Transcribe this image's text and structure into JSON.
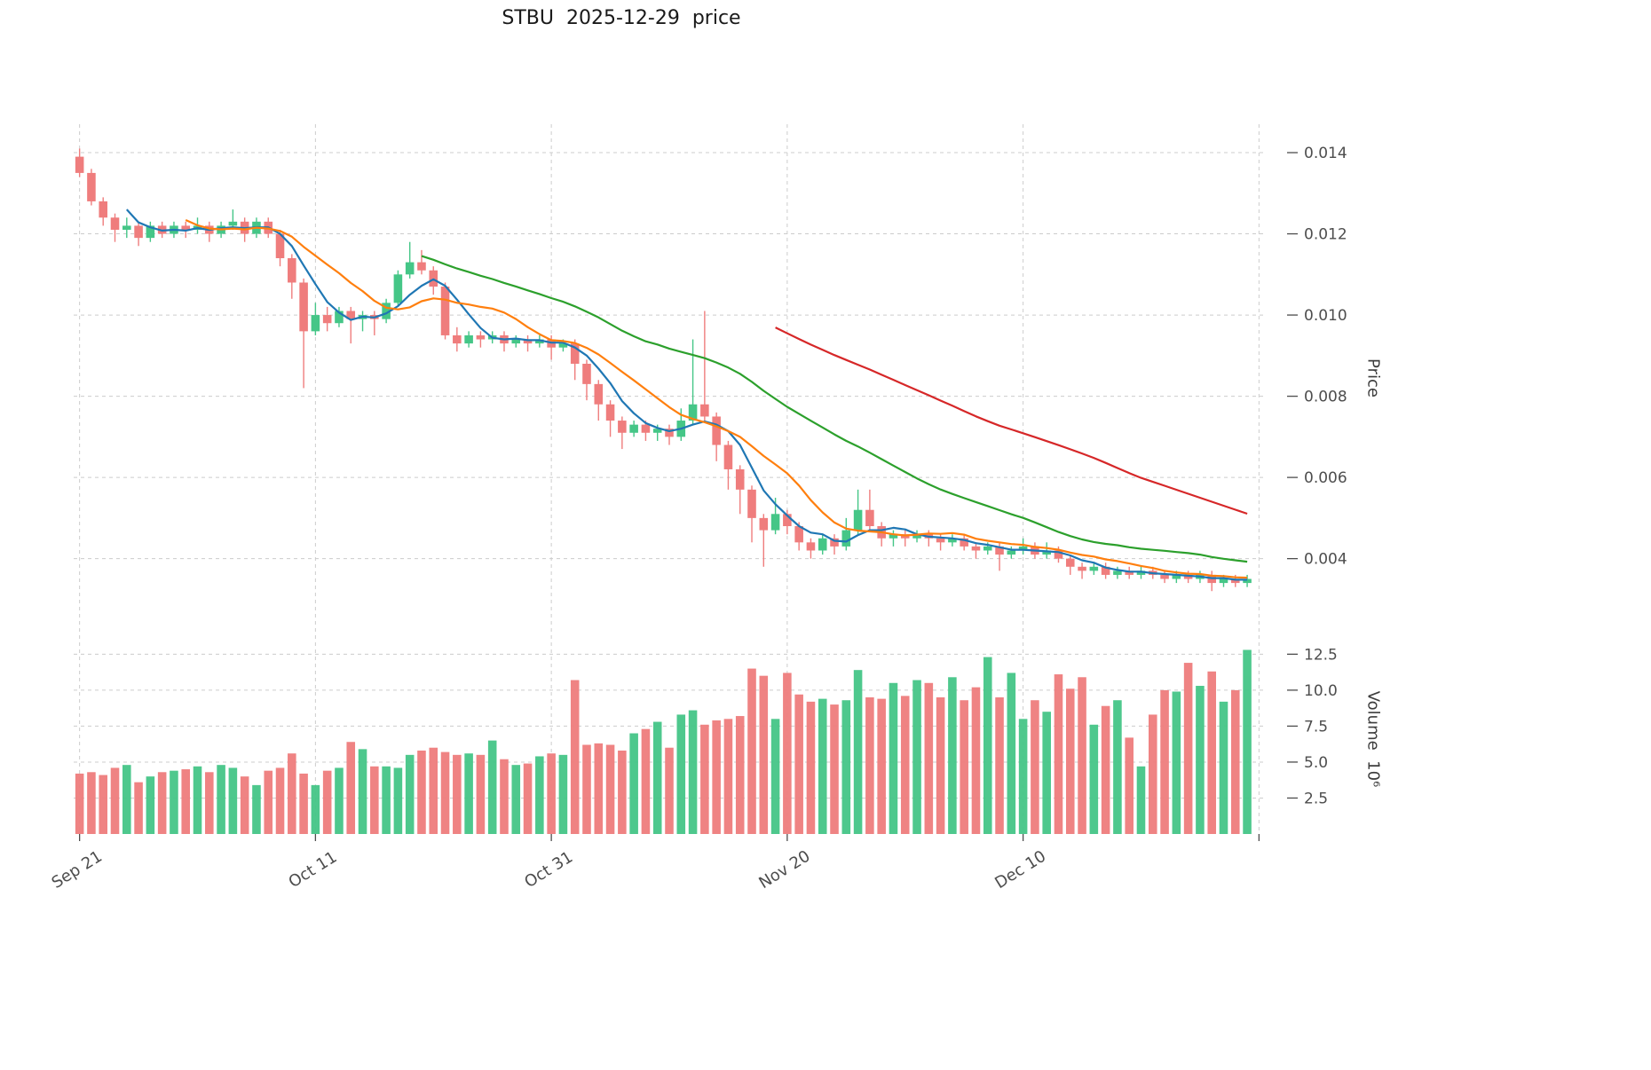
{
  "title": "STBU  2025-12-29  price",
  "axes": {
    "price_label": "Price",
    "volume_label": "Volume  10⁶"
  },
  "colors": {
    "up": "#45c687",
    "down": "#ef7d7d",
    "grid": "#cccccc",
    "tick_text": "#4d4d4d",
    "ma_short": "#1f77b4",
    "ma_mid": "#ff7f0e",
    "ma_long": "#2ca02c",
    "ma_longest": "#d62728"
  },
  "chart_data": {
    "type": "candlestick+volume",
    "start_date": "2025-09-21",
    "end_date": "2025-12-29",
    "x_tick_labels": [
      {
        "index": 0,
        "label": "Sep 21"
      },
      {
        "index": 20,
        "label": "Oct 11"
      },
      {
        "index": 40,
        "label": "Oct 31"
      },
      {
        "index": 60,
        "label": "Nov 20"
      },
      {
        "index": 80,
        "label": "Dec 10"
      },
      {
        "index": 100,
        "label": ""
      }
    ],
    "price_ticks": [
      {
        "value": 0.004,
        "label": "0.004"
      },
      {
        "value": 0.006,
        "label": "0.006"
      },
      {
        "value": 0.008,
        "label": "0.008"
      },
      {
        "value": 0.01,
        "label": "0.010"
      },
      {
        "value": 0.012,
        "label": "0.012"
      },
      {
        "value": 0.014,
        "label": "0.014"
      }
    ],
    "volume_ticks": [
      {
        "value": 2.5,
        "label": "2.5"
      },
      {
        "value": 5.0,
        "label": "5.0"
      },
      {
        "value": 7.5,
        "label": "7.5"
      },
      {
        "value": 10.0,
        "label": "10.0"
      },
      {
        "value": 12.5,
        "label": "12.5"
      }
    ],
    "price_axis_range": [
      0.0022,
      0.0147
    ],
    "volume_axis_range_millions": [
      0,
      13.2
    ],
    "moving_averages": [
      {
        "name": "MA5",
        "window": 5,
        "color": "#1f77b4"
      },
      {
        "name": "MA10",
        "window": 10,
        "color": "#ff7f0e"
      },
      {
        "name": "MA30",
        "window": 30,
        "color": "#2ca02c"
      },
      {
        "name": "MA60",
        "window": 60,
        "color": "#d62728"
      }
    ],
    "candles": {
      "columns": [
        "open",
        "high",
        "low",
        "close",
        "volume_millions"
      ],
      "rows": [
        [
          0.0139,
          0.0141,
          0.0134,
          0.0135,
          4.2
        ],
        [
          0.0135,
          0.0136,
          0.0127,
          0.0128,
          4.3
        ],
        [
          0.0128,
          0.0129,
          0.0122,
          0.0124,
          4.1
        ],
        [
          0.0124,
          0.0125,
          0.0118,
          0.0121,
          4.6
        ],
        [
          0.0121,
          0.0124,
          0.0119,
          0.0122,
          4.8
        ],
        [
          0.0122,
          0.0123,
          0.0117,
          0.0119,
          3.6
        ],
        [
          0.0119,
          0.0123,
          0.0118,
          0.0122,
          4.0
        ],
        [
          0.0122,
          0.0123,
          0.0119,
          0.012,
          4.3
        ],
        [
          0.012,
          0.0123,
          0.0119,
          0.0122,
          4.4
        ],
        [
          0.0122,
          0.0123,
          0.0119,
          0.0121,
          4.5
        ],
        [
          0.0121,
          0.0124,
          0.012,
          0.0122,
          4.7
        ],
        [
          0.0122,
          0.0123,
          0.0118,
          0.012,
          4.3
        ],
        [
          0.012,
          0.0123,
          0.0119,
          0.0122,
          4.8
        ],
        [
          0.0122,
          0.0126,
          0.0121,
          0.0123,
          4.6
        ],
        [
          0.0123,
          0.0124,
          0.0118,
          0.012,
          4.0
        ],
        [
          0.012,
          0.0124,
          0.0119,
          0.0123,
          3.4
        ],
        [
          0.0123,
          0.0124,
          0.0119,
          0.012,
          4.4
        ],
        [
          0.012,
          0.0121,
          0.0112,
          0.0114,
          4.6
        ],
        [
          0.0114,
          0.0115,
          0.0104,
          0.0108,
          5.6
        ],
        [
          0.0108,
          0.0109,
          0.0082,
          0.0096,
          4.2
        ],
        [
          0.0096,
          0.0103,
          0.0095,
          0.01,
          3.4
        ],
        [
          0.01,
          0.0102,
          0.0096,
          0.0098,
          4.4
        ],
        [
          0.0098,
          0.0102,
          0.0097,
          0.0101,
          4.6
        ],
        [
          0.0101,
          0.0102,
          0.0093,
          0.0099,
          6.4
        ],
        [
          0.0099,
          0.0101,
          0.0096,
          0.01,
          5.9
        ],
        [
          0.01,
          0.0101,
          0.0095,
          0.0099,
          4.7
        ],
        [
          0.0099,
          0.0104,
          0.0098,
          0.0103,
          4.7
        ],
        [
          0.0103,
          0.0111,
          0.0102,
          0.011,
          4.6
        ],
        [
          0.011,
          0.0118,
          0.0109,
          0.0113,
          5.5
        ],
        [
          0.0113,
          0.0116,
          0.011,
          0.0111,
          5.8
        ],
        [
          0.0111,
          0.0112,
          0.0105,
          0.0107,
          6.0
        ],
        [
          0.0107,
          0.0108,
          0.0094,
          0.0095,
          5.7
        ],
        [
          0.0095,
          0.0097,
          0.0091,
          0.0093,
          5.5
        ],
        [
          0.0093,
          0.0096,
          0.0092,
          0.0095,
          5.6
        ],
        [
          0.0095,
          0.0096,
          0.0092,
          0.0094,
          5.5
        ],
        [
          0.0094,
          0.0096,
          0.0093,
          0.0095,
          6.5
        ],
        [
          0.0095,
          0.0096,
          0.0091,
          0.0093,
          5.2
        ],
        [
          0.0093,
          0.0095,
          0.0092,
          0.0094,
          4.8
        ],
        [
          0.0094,
          0.0095,
          0.0091,
          0.0093,
          4.9
        ],
        [
          0.0093,
          0.0095,
          0.0092,
          0.0094,
          5.4
        ],
        [
          0.0094,
          0.0095,
          0.0089,
          0.0092,
          5.6
        ],
        [
          0.0092,
          0.0094,
          0.0091,
          0.0093,
          5.5
        ],
        [
          0.0093,
          0.0094,
          0.0084,
          0.0088,
          10.7
        ],
        [
          0.0088,
          0.0089,
          0.0079,
          0.0083,
          6.2
        ],
        [
          0.0083,
          0.0084,
          0.0074,
          0.0078,
          6.3
        ],
        [
          0.0078,
          0.0079,
          0.007,
          0.0074,
          6.2
        ],
        [
          0.0074,
          0.0075,
          0.0067,
          0.0071,
          5.8
        ],
        [
          0.0071,
          0.0074,
          0.007,
          0.0073,
          7.0
        ],
        [
          0.0073,
          0.0074,
          0.0069,
          0.0071,
          7.3
        ],
        [
          0.0071,
          0.0073,
          0.0069,
          0.0072,
          7.8
        ],
        [
          0.0072,
          0.0073,
          0.0068,
          0.007,
          6.0
        ],
        [
          0.007,
          0.0077,
          0.0069,
          0.0074,
          8.3
        ],
        [
          0.0074,
          0.0094,
          0.0073,
          0.0078,
          8.6
        ],
        [
          0.0078,
          0.0101,
          0.0074,
          0.0075,
          7.6
        ],
        [
          0.0075,
          0.0076,
          0.0064,
          0.0068,
          7.9
        ],
        [
          0.0068,
          0.0069,
          0.0057,
          0.0062,
          8.0
        ],
        [
          0.0062,
          0.0063,
          0.0051,
          0.0057,
          8.2
        ],
        [
          0.0057,
          0.0058,
          0.0044,
          0.005,
          11.5
        ],
        [
          0.005,
          0.0051,
          0.0038,
          0.0047,
          11.0
        ],
        [
          0.0047,
          0.0055,
          0.0046,
          0.0051,
          8.0
        ],
        [
          0.0051,
          0.0052,
          0.0046,
          0.0048,
          11.2
        ],
        [
          0.0048,
          0.0049,
          0.0042,
          0.0044,
          9.7
        ],
        [
          0.0044,
          0.0045,
          0.004,
          0.0042,
          9.2
        ],
        [
          0.0042,
          0.0046,
          0.0041,
          0.0045,
          9.4
        ],
        [
          0.0045,
          0.0046,
          0.0041,
          0.0043,
          9.0
        ],
        [
          0.0043,
          0.005,
          0.0042,
          0.0047,
          9.3
        ],
        [
          0.0047,
          0.0057,
          0.0046,
          0.0052,
          11.4
        ],
        [
          0.0052,
          0.0057,
          0.0047,
          0.0048,
          9.5
        ],
        [
          0.0048,
          0.0049,
          0.0043,
          0.0045,
          9.4
        ],
        [
          0.0045,
          0.0047,
          0.0043,
          0.0046,
          10.5
        ],
        [
          0.0046,
          0.0047,
          0.0043,
          0.0045,
          9.6
        ],
        [
          0.0045,
          0.0047,
          0.0044,
          0.0046,
          10.7
        ],
        [
          0.0046,
          0.0047,
          0.0043,
          0.0045,
          10.5
        ],
        [
          0.0045,
          0.0046,
          0.0042,
          0.0044,
          9.5
        ],
        [
          0.0044,
          0.0046,
          0.0043,
          0.0045,
          10.9
        ],
        [
          0.0045,
          0.0046,
          0.0042,
          0.0043,
          9.3
        ],
        [
          0.0043,
          0.0044,
          0.004,
          0.0042,
          10.2
        ],
        [
          0.0042,
          0.0044,
          0.0041,
          0.0043,
          12.3
        ],
        [
          0.0043,
          0.0044,
          0.0037,
          0.0041,
          9.5
        ],
        [
          0.0041,
          0.0043,
          0.004,
          0.0042,
          11.2
        ],
        [
          0.0042,
          0.0045,
          0.0041,
          0.0043,
          8.0
        ],
        [
          0.0043,
          0.0044,
          0.004,
          0.0041,
          9.3
        ],
        [
          0.0041,
          0.0044,
          0.004,
          0.0042,
          8.5
        ],
        [
          0.0042,
          0.0043,
          0.0039,
          0.004,
          11.1
        ],
        [
          0.004,
          0.0041,
          0.0036,
          0.0038,
          10.1
        ],
        [
          0.0038,
          0.0039,
          0.0035,
          0.0037,
          10.9
        ],
        [
          0.0037,
          0.0039,
          0.0036,
          0.0038,
          7.6
        ],
        [
          0.0038,
          0.0039,
          0.0035,
          0.0036,
          8.9
        ],
        [
          0.0036,
          0.0038,
          0.0035,
          0.0037,
          9.3
        ],
        [
          0.0037,
          0.0038,
          0.0035,
          0.0036,
          6.7
        ],
        [
          0.0036,
          0.0038,
          0.0035,
          0.0037,
          4.7
        ],
        [
          0.0037,
          0.0038,
          0.0035,
          0.0036,
          8.3
        ],
        [
          0.0036,
          0.0037,
          0.0034,
          0.0035,
          10.0
        ],
        [
          0.0035,
          0.0037,
          0.0034,
          0.0036,
          9.9
        ],
        [
          0.0036,
          0.0037,
          0.0034,
          0.0035,
          11.9
        ],
        [
          0.0035,
          0.0037,
          0.0034,
          0.0036,
          10.3
        ],
        [
          0.0036,
          0.0037,
          0.0032,
          0.0034,
          11.3
        ],
        [
          0.0034,
          0.0036,
          0.0033,
          0.0035,
          9.2
        ],
        [
          0.0035,
          0.0036,
          0.0033,
          0.0034,
          10.0
        ],
        [
          0.0034,
          0.0036,
          0.0033,
          0.0035,
          12.8
        ]
      ]
    }
  }
}
